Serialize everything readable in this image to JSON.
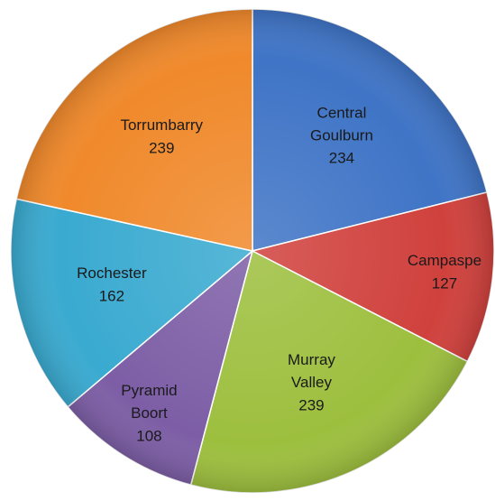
{
  "chart_data": {
    "type": "pie",
    "categories": [
      "Central Goulburn",
      "Campaspe",
      "Murray Valley",
      "Pyramid Boort",
      "Rochester",
      "Torrumbarry"
    ],
    "values": [
      234,
      127,
      239,
      108,
      162,
      239
    ],
    "colors": [
      "#3f74c6",
      "#d0413d",
      "#9dbf3e",
      "#7d5ea6",
      "#3aaad0",
      "#f0892b"
    ]
  }
}
